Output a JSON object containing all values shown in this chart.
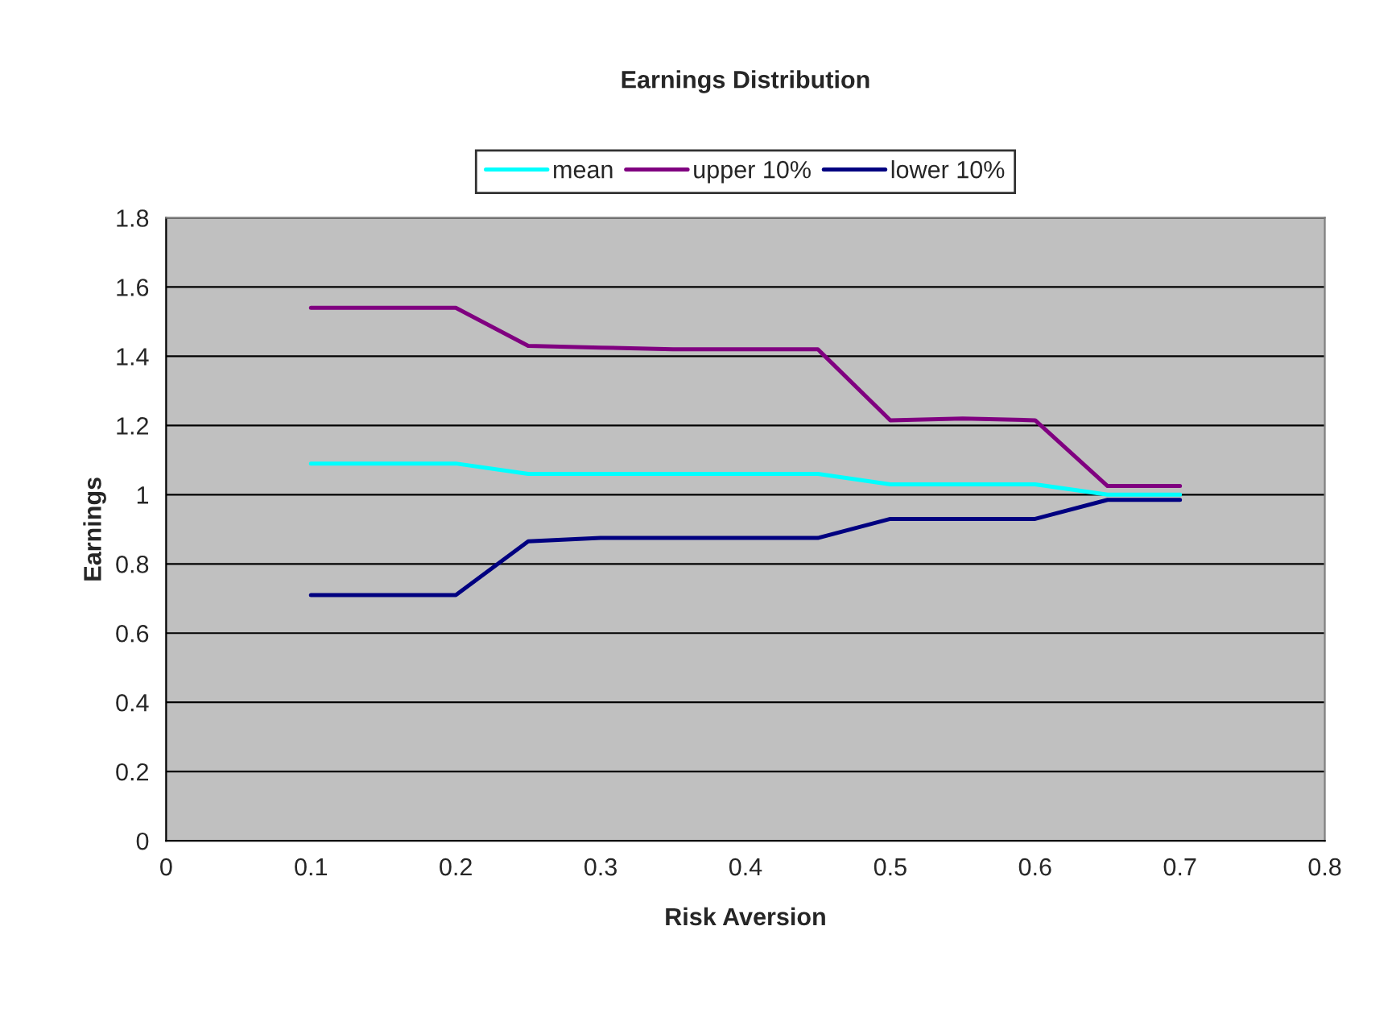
{
  "chart_data": {
    "type": "line",
    "title": "Earnings Distribution",
    "xlabel": "Risk Aversion",
    "ylabel": "Earnings",
    "x": [
      0.1,
      0.2,
      0.25,
      0.3,
      0.35,
      0.4,
      0.45,
      0.5,
      0.55,
      0.6,
      0.65,
      0.7
    ],
    "series": [
      {
        "name": "mean",
        "color": "#00ffff",
        "values": [
          1.09,
          1.09,
          1.06,
          1.06,
          1.06,
          1.06,
          1.06,
          1.03,
          1.03,
          1.03,
          1.0,
          1.0
        ]
      },
      {
        "name": "upper 10%",
        "color": "#800080",
        "values": [
          1.54,
          1.54,
          1.43,
          1.425,
          1.42,
          1.42,
          1.42,
          1.215,
          1.22,
          1.215,
          1.025,
          1.025
        ]
      },
      {
        "name": "lower 10%",
        "color": "#000080",
        "values": [
          0.71,
          0.71,
          0.865,
          0.875,
          0.875,
          0.875,
          0.875,
          0.93,
          0.93,
          0.93,
          0.985,
          0.985
        ]
      }
    ],
    "xlim": [
      0,
      0.8
    ],
    "xticks": [
      0,
      0.1,
      0.2,
      0.3,
      0.4,
      0.5,
      0.6,
      0.7,
      0.8
    ],
    "ylim": [
      0,
      1.8
    ],
    "yticks": [
      0,
      0.2,
      0.4,
      0.6,
      0.8,
      1,
      1.2,
      1.4,
      1.6,
      1.8
    ],
    "grid": "y",
    "legend": "top",
    "marker": "none",
    "line_style": "solid"
  }
}
